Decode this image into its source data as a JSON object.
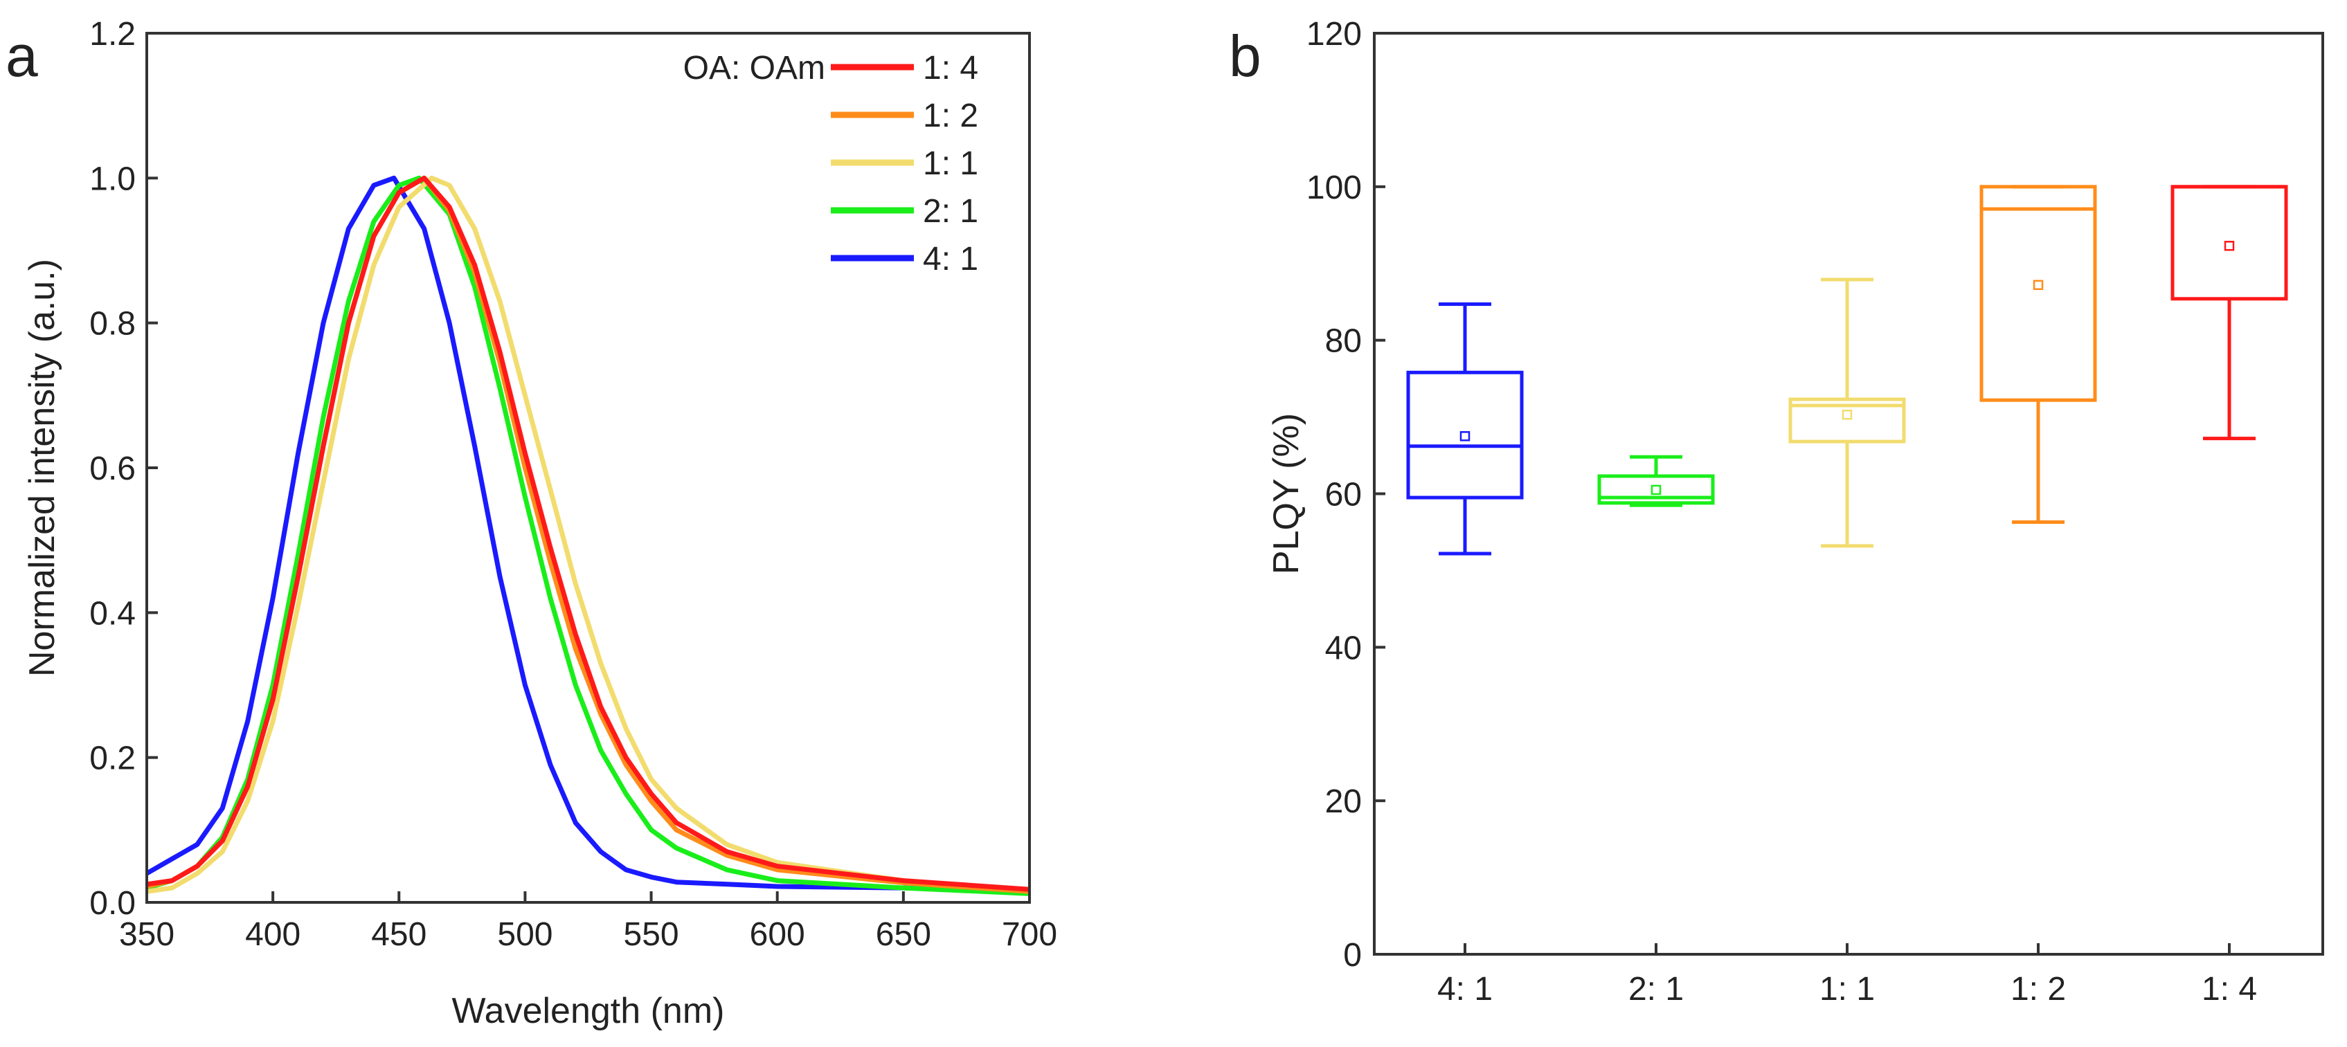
{
  "chart_data": [
    {
      "panel": "a",
      "type": "line",
      "xlabel": "Wavelength (nm)",
      "ylabel": "Normalized intensity (a.u.)",
      "xlim": [
        350,
        700
      ],
      "ylim": [
        0,
        1.2
      ],
      "xticks": [
        350,
        400,
        450,
        500,
        550,
        600,
        650,
        700
      ],
      "yticks": [
        "0.0",
        "0.2",
        "0.4",
        "0.6",
        "0.8",
        "1.0",
        "1.2"
      ],
      "legend_title": "OA: OAm",
      "legend_position": "top-right",
      "series": [
        {
          "name": "1: 4",
          "color": "#ff1a1a",
          "x": [
            350,
            360,
            370,
            380,
            390,
            400,
            410,
            420,
            430,
            440,
            450,
            460,
            470,
            480,
            490,
            500,
            510,
            520,
            530,
            540,
            550,
            560,
            580,
            600,
            650,
            700
          ],
          "y": [
            0.025,
            0.03,
            0.05,
            0.085,
            0.16,
            0.28,
            0.45,
            0.63,
            0.8,
            0.92,
            0.98,
            1.0,
            0.96,
            0.88,
            0.76,
            0.62,
            0.49,
            0.37,
            0.27,
            0.2,
            0.15,
            0.11,
            0.07,
            0.05,
            0.03,
            0.018
          ]
        },
        {
          "name": "1: 2",
          "color": "#ff8c1a",
          "x": [
            350,
            360,
            370,
            380,
            390,
            400,
            410,
            420,
            430,
            440,
            450,
            460,
            470,
            480,
            490,
            500,
            510,
            520,
            530,
            540,
            550,
            560,
            580,
            600,
            650,
            700
          ],
          "y": [
            0.022,
            0.03,
            0.05,
            0.085,
            0.16,
            0.28,
            0.45,
            0.63,
            0.8,
            0.92,
            0.98,
            1.0,
            0.955,
            0.87,
            0.745,
            0.6,
            0.47,
            0.35,
            0.26,
            0.19,
            0.14,
            0.1,
            0.065,
            0.045,
            0.027,
            0.015
          ]
        },
        {
          "name": "1: 1",
          "color": "#f2dc6e",
          "x": [
            350,
            360,
            370,
            380,
            390,
            400,
            410,
            420,
            430,
            440,
            450,
            463,
            470,
            480,
            490,
            500,
            510,
            520,
            530,
            540,
            550,
            560,
            580,
            600,
            650,
            700
          ],
          "y": [
            0.015,
            0.02,
            0.04,
            0.07,
            0.14,
            0.25,
            0.41,
            0.58,
            0.75,
            0.88,
            0.96,
            1.0,
            0.99,
            0.93,
            0.83,
            0.7,
            0.57,
            0.44,
            0.33,
            0.24,
            0.17,
            0.13,
            0.08,
            0.055,
            0.03,
            0.015
          ]
        },
        {
          "name": "2: 1",
          "color": "#1aee1a",
          "x": [
            350,
            360,
            370,
            380,
            390,
            400,
            410,
            420,
            430,
            440,
            450,
            458,
            470,
            480,
            490,
            500,
            510,
            520,
            530,
            540,
            550,
            560,
            580,
            600,
            650,
            700
          ],
          "y": [
            0.02,
            0.03,
            0.05,
            0.09,
            0.17,
            0.3,
            0.48,
            0.67,
            0.83,
            0.94,
            0.99,
            1.0,
            0.95,
            0.85,
            0.71,
            0.56,
            0.42,
            0.3,
            0.21,
            0.15,
            0.1,
            0.075,
            0.045,
            0.03,
            0.02,
            0.012
          ]
        },
        {
          "name": "4: 1",
          "color": "#1a1aff",
          "x": [
            350,
            360,
            370,
            380,
            390,
            400,
            410,
            420,
            430,
            440,
            448,
            460,
            470,
            480,
            490,
            500,
            510,
            520,
            530,
            540,
            550,
            560,
            580,
            600,
            650,
            700
          ],
          "y": [
            0.04,
            0.06,
            0.08,
            0.13,
            0.25,
            0.42,
            0.62,
            0.8,
            0.93,
            0.99,
            1.0,
            0.93,
            0.8,
            0.63,
            0.45,
            0.3,
            0.19,
            0.11,
            0.07,
            0.045,
            0.035,
            0.028,
            0.025,
            0.022,
            0.02,
            0.015
          ]
        }
      ]
    },
    {
      "panel": "b",
      "type": "box",
      "xlabel": "",
      "ylabel": "PLQY (%)",
      "ylim": [
        0,
        120
      ],
      "yticks": [
        "0",
        "20",
        "40",
        "60",
        "80",
        "100",
        "120"
      ],
      "categories": [
        "4: 1",
        "2: 1",
        "1: 1",
        "1: 2",
        "1: 4"
      ],
      "boxes": [
        {
          "category": "4: 1",
          "color": "#1a1aff",
          "min": 52.2,
          "q1": 59.5,
          "median": 66.2,
          "q3": 75.8,
          "max": 84.7,
          "mean": 67.5
        },
        {
          "category": "2: 1",
          "color": "#1aee1a",
          "min": 58.5,
          "q1": 58.8,
          "median": 59.5,
          "q3": 62.3,
          "max": 64.8,
          "mean": 60.5
        },
        {
          "category": "1: 1",
          "color": "#f2dc6e",
          "min": 53.2,
          "q1": 66.8,
          "median": 71.5,
          "q3": 72.3,
          "max": 87.9,
          "mean": 70.3
        },
        {
          "category": "1: 2",
          "color": "#ff8c1a",
          "min": 56.3,
          "q1": 72.2,
          "median": 97.1,
          "q3": 100,
          "max": 100,
          "mean": 87.2
        },
        {
          "category": "1: 4",
          "color": "#ff1a1a",
          "min": 67.2,
          "q1": 85.4,
          "median": 100,
          "q3": 100,
          "max": 100,
          "mean": 92.3
        }
      ]
    }
  ],
  "panels": {
    "a": "a",
    "b": "b"
  }
}
